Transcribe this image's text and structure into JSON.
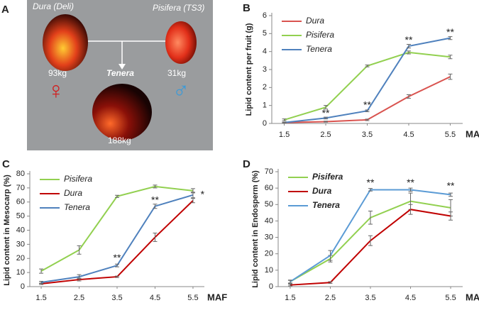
{
  "panel_a": {
    "label": "A",
    "left_fruit": "Dura (Deli)",
    "right_fruit": "Pisifera (TS3)",
    "center_fruit": "Tenera",
    "left_weight": "93kg",
    "right_weight": "31kg",
    "center_weight": "188kg",
    "female": "♀",
    "male": "♂"
  },
  "chart_data": [
    {
      "panel": "B",
      "type": "line",
      "ylabel": "Lipid content per fruit (g)",
      "xlabel": "MAF",
      "x": [
        1.5,
        2.5,
        3.5,
        4.5,
        5.5
      ],
      "xlim": [
        1.2,
        5.8
      ],
      "xticks": [
        1.5,
        2.5,
        3.5,
        4.5,
        5.5
      ],
      "ylim": [
        0,
        6
      ],
      "yticks": [
        0,
        1,
        2,
        3,
        4,
        5,
        6
      ],
      "legend": "upper left",
      "series": [
        {
          "name": "Dura",
          "color": "#d9534f",
          "values": [
            0.05,
            0.1,
            0.2,
            1.5,
            2.6
          ],
          "errors": [
            0.02,
            0.03,
            0.04,
            0.1,
            0.15
          ]
        },
        {
          "name": "Pisifera",
          "color": "#92d050",
          "values": [
            0.2,
            0.9,
            3.2,
            3.95,
            3.7
          ],
          "errors": [
            0.05,
            0.1,
            0.05,
            0.08,
            0.1
          ]
        },
        {
          "name": "Tenera",
          "color": "#4f81bd",
          "values": [
            0.05,
            0.3,
            0.7,
            4.3,
            4.75
          ],
          "errors": [
            0.02,
            0.05,
            0.05,
            0.1,
            0.08
          ]
        }
      ],
      "annotations": [
        {
          "text": "**",
          "x": 2.5,
          "y": 0.55
        },
        {
          "text": "**",
          "x": 3.5,
          "y": 1.0
        },
        {
          "text": "**",
          "x": 4.5,
          "y": 4.6
        },
        {
          "text": "**",
          "x": 5.5,
          "y": 5.05
        }
      ]
    },
    {
      "panel": "C",
      "type": "line",
      "ylabel": "Lipid content in Mesocarp (%)",
      "xlabel": "MAF",
      "x": [
        1.5,
        2.5,
        3.5,
        4.5,
        5.5
      ],
      "xlim": [
        1.2,
        5.8
      ],
      "xticks": [
        1.5,
        2.5,
        3.5,
        4.5,
        5.5
      ],
      "ylim": [
        0,
        80
      ],
      "yticks": [
        0,
        10,
        20,
        30,
        40,
        50,
        60,
        70,
        80
      ],
      "legend": "upper left",
      "series": [
        {
          "name": "Pisifera",
          "color": "#92d050",
          "values": [
            11,
            26,
            64,
            71,
            68
          ],
          "errors": [
            1.5,
            3,
            0.8,
            1,
            1.5
          ]
        },
        {
          "name": "Dura",
          "color": "#c00000",
          "values": [
            2,
            5,
            7,
            35,
            61
          ],
          "errors": [
            0.5,
            1,
            0.5,
            3,
            1.5
          ]
        },
        {
          "name": "Tenera",
          "color": "#4f81bd",
          "values": [
            3,
            7,
            15,
            57,
            65
          ],
          "errors": [
            0.8,
            1.5,
            1,
            1.5,
            2
          ]
        }
      ],
      "annotations": [
        {
          "text": "**",
          "x": 3.5,
          "y": 20
        },
        {
          "text": "**",
          "x": 4.5,
          "y": 61
        },
        {
          "text": "*",
          "x": 5.75,
          "y": 65
        }
      ]
    },
    {
      "panel": "D",
      "type": "line",
      "ylabel": "Lipid content in Endosperm (%)",
      "xlabel": "MAF",
      "x": [
        1.5,
        2.5,
        3.5,
        4.5,
        5.5
      ],
      "xlim": [
        1.2,
        5.8
      ],
      "xticks": [
        1.5,
        2.5,
        3.5,
        4.5,
        5.5
      ],
      "ylim": [
        0,
        70
      ],
      "yticks": [
        0,
        10,
        20,
        30,
        40,
        50,
        60,
        70
      ],
      "legend": "upper left",
      "series": [
        {
          "name": "Pisifera",
          "color": "#92d050",
          "values": [
            3,
            17,
            42,
            52,
            48
          ],
          "errors": [
            1,
            2,
            4,
            5,
            5
          ]
        },
        {
          "name": "Dura",
          "color": "#c00000",
          "values": [
            1,
            2.5,
            28,
            47,
            43
          ],
          "errors": [
            0.5,
            0.5,
            3,
            3,
            2.5
          ]
        },
        {
          "name": "Tenera",
          "color": "#5b9bd5",
          "values": [
            3,
            19,
            59,
            59,
            56
          ],
          "errors": [
            0.8,
            3,
            0.8,
            1,
            1
          ]
        }
      ],
      "annotations": [
        {
          "text": "**",
          "x": 3.5,
          "y": 63
        },
        {
          "text": "**",
          "x": 4.5,
          "y": 63
        },
        {
          "text": "**",
          "x": 5.5,
          "y": 61
        }
      ]
    }
  ]
}
